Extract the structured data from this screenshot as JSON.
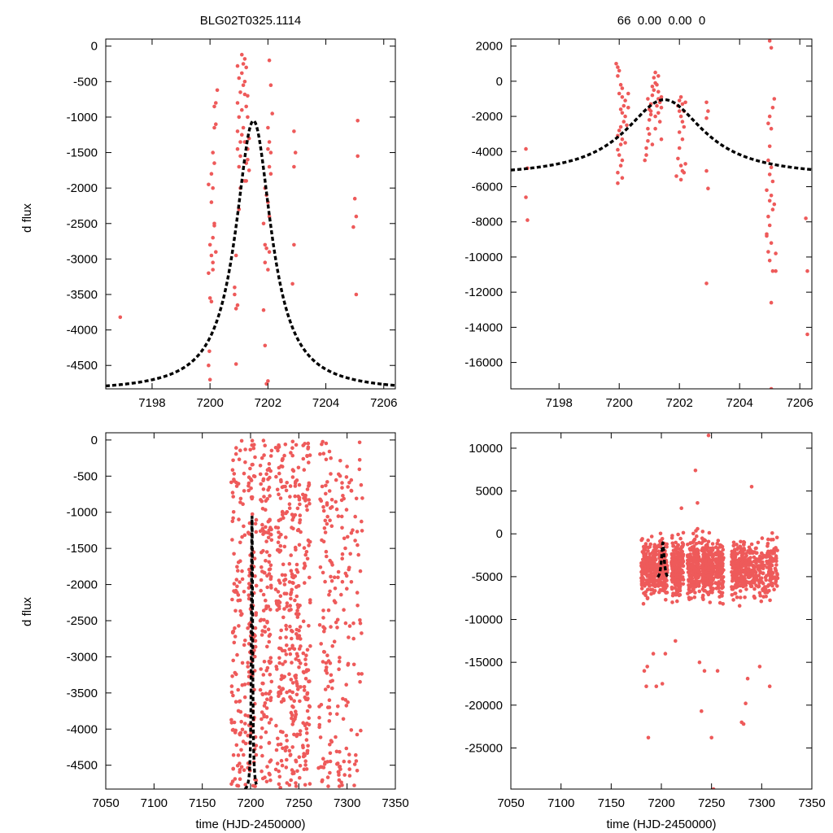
{
  "header": {
    "left_title": "BLG02T0325.1114",
    "right_title": "66  0.00  0.00  0"
  },
  "colors": {
    "point": "#ee5a5a",
    "model": "#000000",
    "frame": "#000000"
  },
  "chart_data": [
    {
      "id": "top-left",
      "type": "scatter",
      "title": "BLG02T0325.1114",
      "xlabel": "",
      "ylabel": "d flux",
      "xlim": [
        7196.4,
        7206.4
      ],
      "ylim": [
        -4830,
        100
      ],
      "xticks": [
        7198,
        7200,
        7202,
        7204,
        7206
      ],
      "yticks": [
        0,
        -500,
        -1000,
        -1500,
        -2000,
        -2500,
        -3000,
        -3500,
        -4000,
        -4500
      ],
      "ytick_labels": [
        "0",
        "-500",
        "-1000",
        "-1500",
        "-2000",
        "-2500",
        "-3000",
        "-3500",
        "-4000",
        "-4500"
      ],
      "model": {
        "t0": 7201.5,
        "peak": -1050,
        "base": -4870,
        "tau": 0.75,
        "x_range": [
          7196.4,
          7206.4
        ]
      },
      "points": [
        [
          7196.9,
          -3820
        ],
        [
          7199.95,
          -4500
        ],
        [
          7200.0,
          -4700
        ],
        [
          7199.98,
          -4300
        ],
        [
          7200.05,
          -3600
        ],
        [
          7200.0,
          -3550
        ],
        [
          7199.95,
          -3200
        ],
        [
          7200.05,
          -2950
        ],
        [
          7200.1,
          -3050
        ],
        [
          7200.0,
          -2800
        ],
        [
          7200.1,
          -2700
        ],
        [
          7200.15,
          -2500
        ],
        [
          7200.05,
          -2200
        ],
        [
          7200.1,
          -2000
        ],
        [
          7199.95,
          -1950
        ],
        [
          7200.05,
          -1800
        ],
        [
          7200.15,
          -1650
        ],
        [
          7200.1,
          -1500
        ],
        [
          7200.15,
          -1150
        ],
        [
          7200.2,
          -1100
        ],
        [
          7200.15,
          -850
        ],
        [
          7200.2,
          -800
        ],
        [
          7200.25,
          -620
        ],
        [
          7200.15,
          -2530
        ],
        [
          7200.2,
          -2900
        ],
        [
          7200.1,
          -3150
        ],
        [
          7200.9,
          -4480
        ],
        [
          7200.9,
          -3700
        ],
        [
          7200.85,
          -3400
        ],
        [
          7200.95,
          -3650
        ],
        [
          7200.85,
          -3500
        ],
        [
          7200.9,
          -2950
        ],
        [
          7201.0,
          -2300
        ],
        [
          7201.05,
          -2000
        ],
        [
          7201.0,
          -1700
        ],
        [
          7200.95,
          -1450
        ],
        [
          7201.05,
          -1350
        ],
        [
          7201.1,
          -1250
        ],
        [
          7201.0,
          -1000
        ],
        [
          7201.1,
          -900
        ],
        [
          7200.95,
          -800
        ],
        [
          7201.05,
          -650
        ],
        [
          7201.15,
          -550
        ],
        [
          7201.0,
          -450
        ],
        [
          7201.1,
          -380
        ],
        [
          7200.95,
          -280
        ],
        [
          7201.15,
          -250
        ],
        [
          7201.2,
          -180
        ],
        [
          7201.1,
          -120
        ],
        [
          7201.25,
          -300
        ],
        [
          7201.2,
          -500
        ],
        [
          7201.3,
          -700
        ],
        [
          7201.25,
          -850
        ],
        [
          7201.3,
          -1000
        ],
        [
          7201.15,
          -1150
        ],
        [
          7201.2,
          -1350
        ],
        [
          7201.3,
          -1450
        ],
        [
          7201.25,
          -1650
        ],
        [
          7201.35,
          -1750
        ],
        [
          7201.2,
          -1900
        ],
        [
          7201.35,
          -1300
        ],
        [
          7201.05,
          -1550
        ],
        [
          7200.95,
          -1200
        ],
        [
          7201.2,
          -680
        ],
        [
          7201.9,
          -2000
        ],
        [
          7201.95,
          -2100
        ],
        [
          7202.0,
          -2200
        ],
        [
          7201.85,
          -2500
        ],
        [
          7201.9,
          -2800
        ],
        [
          7201.95,
          -2850
        ],
        [
          7202.05,
          -2900
        ],
        [
          7201.9,
          -3050
        ],
        [
          7202.0,
          -3150
        ],
        [
          7201.85,
          -3720
        ],
        [
          7201.9,
          -4220
        ],
        [
          7201.95,
          -4760
        ],
        [
          7202.0,
          -4720
        ],
        [
          7202.05,
          -2400
        ],
        [
          7202.1,
          -1800
        ],
        [
          7202.1,
          -1500
        ],
        [
          7202.05,
          -1350
        ],
        [
          7202.0,
          -1150
        ],
        [
          7202.15,
          -950
        ],
        [
          7202.1,
          -550
        ],
        [
          7202.05,
          -1700
        ],
        [
          7202.0,
          -1450
        ],
        [
          7202.05,
          -200
        ],
        [
          7202.9,
          -1200
        ],
        [
          7202.95,
          -1500
        ],
        [
          7202.9,
          -1700
        ],
        [
          7202.9,
          -2800
        ],
        [
          7202.85,
          -3350
        ],
        [
          7205.0,
          -2150
        ],
        [
          7205.05,
          -2400
        ],
        [
          7204.95,
          -2550
        ],
        [
          7205.05,
          -3500
        ],
        [
          7205.1,
          -1550
        ],
        [
          7205.1,
          -1050
        ],
        [
          7201.25,
          -1900
        ],
        [
          7201.3,
          -1600
        ]
      ]
    },
    {
      "id": "top-right",
      "type": "scatter",
      "title": "66  0.00  0.00  0",
      "xlabel": "",
      "ylabel": "",
      "xlim": [
        7196.4,
        7206.4
      ],
      "ylim": [
        -17500,
        2400
      ],
      "xticks": [
        7198,
        7200,
        7202,
        7204,
        7206
      ],
      "yticks": [
        2000,
        0,
        -2000,
        -4000,
        -6000,
        -8000,
        -10000,
        -12000,
        -14000,
        -16000
      ],
      "ytick_labels": [
        "2000",
        "0",
        "-2000",
        "-4000",
        "-6000",
        "-8000",
        "-10000",
        "-12000",
        "-14000",
        "-16000"
      ],
      "model": {
        "t0": 7201.5,
        "peak": -1050,
        "base": -5450,
        "tau": 1.6,
        "x_range": [
          7196.4,
          7206.4
        ]
      },
      "points": [
        [
          7196.9,
          -3850
        ],
        [
          7196.95,
          -4950
        ],
        [
          7196.9,
          -6600
        ],
        [
          7196.95,
          -7900
        ],
        [
          7199.9,
          1000
        ],
        [
          7199.95,
          800
        ],
        [
          7200.0,
          600
        ],
        [
          7199.95,
          300
        ],
        [
          7200.05,
          -200
        ],
        [
          7200.1,
          -400
        ],
        [
          7200.0,
          -700
        ],
        [
          7200.1,
          -900
        ],
        [
          7200.2,
          -1100
        ],
        [
          7200.15,
          -1400
        ],
        [
          7200.05,
          -1600
        ],
        [
          7200.1,
          -1800
        ],
        [
          7200.2,
          -2000
        ],
        [
          7200.15,
          -2300
        ],
        [
          7200.05,
          -2600
        ],
        [
          7200.0,
          -2800
        ],
        [
          7199.95,
          -3100
        ],
        [
          7200.1,
          -3300
        ],
        [
          7200.05,
          -3600
        ],
        [
          7199.95,
          -3900
        ],
        [
          7200.0,
          -4200
        ],
        [
          7200.1,
          -4500
        ],
        [
          7200.05,
          -4800
        ],
        [
          7199.95,
          -5200
        ],
        [
          7200.1,
          -5500
        ],
        [
          7199.95,
          -5800
        ],
        [
          7200.2,
          -3500
        ],
        [
          7200.25,
          -2500
        ],
        [
          7200.3,
          -1500
        ],
        [
          7200.3,
          -700
        ],
        [
          7200.85,
          -4500
        ],
        [
          7200.9,
          -4200
        ],
        [
          7200.9,
          -3800
        ],
        [
          7200.95,
          -3400
        ],
        [
          7201.0,
          -3000
        ],
        [
          7200.95,
          -2700
        ],
        [
          7201.0,
          -2200
        ],
        [
          7201.05,
          -1900
        ],
        [
          7201.0,
          -1600
        ],
        [
          7201.05,
          -1300
        ],
        [
          7200.95,
          -1000
        ],
        [
          7201.1,
          -800
        ],
        [
          7201.15,
          -500
        ],
        [
          7201.1,
          -300
        ],
        [
          7201.2,
          -100
        ],
        [
          7201.15,
          200
        ],
        [
          7201.2,
          500
        ],
        [
          7201.3,
          300
        ],
        [
          7201.25,
          -200
        ],
        [
          7201.3,
          -600
        ],
        [
          7201.35,
          -1200
        ],
        [
          7201.4,
          -900
        ],
        [
          7201.25,
          -1400
        ],
        [
          7201.3,
          -1800
        ],
        [
          7201.35,
          -2300
        ],
        [
          7201.2,
          -2700
        ],
        [
          7201.4,
          -3300
        ],
        [
          7201.1,
          -3600
        ],
        [
          7201.2,
          -2000
        ],
        [
          7201.4,
          -1500
        ],
        [
          7201.3,
          -1000
        ],
        [
          7201.05,
          -1700
        ],
        [
          7201.95,
          -1400
        ],
        [
          7202.0,
          -1100
        ],
        [
          7202.05,
          -900
        ],
        [
          7202.1,
          -1300
        ],
        [
          7202.0,
          -1700
        ],
        [
          7202.05,
          -2000
        ],
        [
          7202.1,
          -2300
        ],
        [
          7202.15,
          -2600
        ],
        [
          7202.0,
          -2900
        ],
        [
          7202.1,
          -3300
        ],
        [
          7202.0,
          -3800
        ],
        [
          7201.95,
          -4400
        ],
        [
          7202.05,
          -4800
        ],
        [
          7202.1,
          -5100
        ],
        [
          7201.9,
          -5400
        ],
        [
          7202.05,
          -5600
        ],
        [
          7202.15,
          -5200
        ],
        [
          7202.2,
          -4700
        ],
        [
          7202.15,
          -1700
        ],
        [
          7202.2,
          -1200
        ],
        [
          7202.9,
          -1200
        ],
        [
          7202.95,
          -1700
        ],
        [
          7202.9,
          -2100
        ],
        [
          7202.9,
          -5100
        ],
        [
          7202.95,
          -6100
        ],
        [
          7202.9,
          -11500
        ],
        [
          7204.95,
          -2400
        ],
        [
          7205.0,
          -2000
        ],
        [
          7205.05,
          -2700
        ],
        [
          7205.0,
          -3700
        ],
        [
          7204.95,
          -4500
        ],
        [
          7205.05,
          -4900
        ],
        [
          7205.0,
          -5300
        ],
        [
          7205.1,
          -5700
        ],
        [
          7204.9,
          -6200
        ],
        [
          7205.05,
          -6500
        ],
        [
          7205.0,
          -6800
        ],
        [
          7205.1,
          -7300
        ],
        [
          7204.95,
          -7700
        ],
        [
          7205.0,
          -8200
        ],
        [
          7204.9,
          -8700
        ],
        [
          7205.05,
          -9200
        ],
        [
          7204.95,
          -9700
        ],
        [
          7205.0,
          -10200
        ],
        [
          7205.1,
          -10800
        ],
        [
          7205.05,
          -12600
        ],
        [
          7204.9,
          -8800
        ],
        [
          7205.15,
          -7000
        ],
        [
          7205.15,
          -1000
        ],
        [
          7205.1,
          -1500
        ],
        [
          7205.0,
          2300
        ],
        [
          7205.05,
          1900
        ],
        [
          7205.05,
          -17500
        ],
        [
          7206.2,
          -7800
        ],
        [
          7206.25,
          -10800
        ],
        [
          7206.25,
          -14400
        ],
        [
          7205.2,
          -9800
        ],
        [
          7205.2,
          -10800
        ]
      ]
    },
    {
      "id": "bottom-left",
      "type": "scatter",
      "title": "",
      "xlabel": "time (HJD-2450000)",
      "ylabel": "d flux",
      "xlim": [
        7050,
        7350
      ],
      "ylim": [
        -4830,
        100
      ],
      "xticks": [
        7050,
        7100,
        7150,
        7200,
        7250,
        7300,
        7350
      ],
      "yticks": [
        0,
        -500,
        -1000,
        -1500,
        -2000,
        -2500,
        -3000,
        -3500,
        -4000,
        -4500
      ],
      "ytick_labels": [
        "0",
        "-500",
        "-1000",
        "-1500",
        "-2000",
        "-2500",
        "-3000",
        "-3500",
        "-4000",
        "-4500"
      ],
      "model": {
        "t0": 7201.5,
        "peak": -1050,
        "base": -4870,
        "tau": 0.75,
        "x_range": [
          7194,
          7206
        ]
      },
      "bands": [
        {
          "x": [
            7180,
            7195
          ],
          "count": 120
        },
        {
          "x": [
            7197,
            7206
          ],
          "count": 110
        },
        {
          "x": [
            7210,
            7222
          ],
          "count": 140
        },
        {
          "x": [
            7226,
            7238
          ],
          "count": 130
        },
        {
          "x": [
            7240,
            7252
          ],
          "count": 150
        },
        {
          "x": [
            7254,
            7262
          ],
          "count": 90
        },
        {
          "x": [
            7270,
            7285
          ],
          "count": 100
        },
        {
          "x": [
            7286,
            7316
          ],
          "count": 120
        }
      ]
    },
    {
      "id": "bottom-right",
      "type": "scatter",
      "title": "",
      "xlabel": "time (HJD-2450000)",
      "ylabel": "",
      "xlim": [
        7050,
        7350
      ],
      "ylim": [
        -29800,
        11800
      ],
      "xticks": [
        7050,
        7100,
        7150,
        7200,
        7250,
        7300,
        7350
      ],
      "yticks": [
        10000,
        5000,
        0,
        -5000,
        -10000,
        -15000,
        -20000,
        -25000
      ],
      "ytick_labels": [
        "10000",
        "5000",
        "0",
        "-5000",
        "-10000",
        "-15000",
        "-20000",
        "-25000"
      ],
      "model": {
        "t0": 7201.5,
        "peak": -1050,
        "base": -5450,
        "tau": 1.6,
        "x_range": [
          7196.4,
          7206.4
        ]
      },
      "bands": [
        {
          "x": [
            7180,
            7195
          ],
          "count": 200
        },
        {
          "x": [
            7197,
            7206
          ],
          "count": 170
        },
        {
          "x": [
            7210,
            7222
          ],
          "count": 200
        },
        {
          "x": [
            7226,
            7238
          ],
          "count": 190
        },
        {
          "x": [
            7240,
            7252
          ],
          "count": 230
        },
        {
          "x": [
            7254,
            7262
          ],
          "count": 140
        },
        {
          "x": [
            7270,
            7285
          ],
          "count": 180
        },
        {
          "x": [
            7286,
            7316
          ],
          "count": 240
        }
      ],
      "outliers": [
        [
          7183,
          -16000
        ],
        [
          7185,
          -17800
        ],
        [
          7187,
          -23800
        ],
        [
          7195,
          -17800
        ],
        [
          7186,
          -15500
        ],
        [
          7192,
          -14000
        ],
        [
          7201,
          -17500
        ],
        [
          7204,
          -14000
        ],
        [
          7214,
          -12500
        ],
        [
          7220,
          3000
        ],
        [
          7234,
          7400
        ],
        [
          7236,
          3600
        ],
        [
          7238,
          -15000
        ],
        [
          7240,
          -20700
        ],
        [
          7243,
          -16000
        ],
        [
          7247,
          11500
        ],
        [
          7250,
          -23800
        ],
        [
          7252,
          -29800
        ],
        [
          7256,
          -16000
        ],
        [
          7280,
          -22000
        ],
        [
          7282,
          -22200
        ],
        [
          7284,
          -19800
        ],
        [
          7286,
          -16900
        ],
        [
          7290,
          5500
        ],
        [
          7298,
          -15500
        ],
        [
          7308,
          -17800
        ]
      ]
    }
  ]
}
